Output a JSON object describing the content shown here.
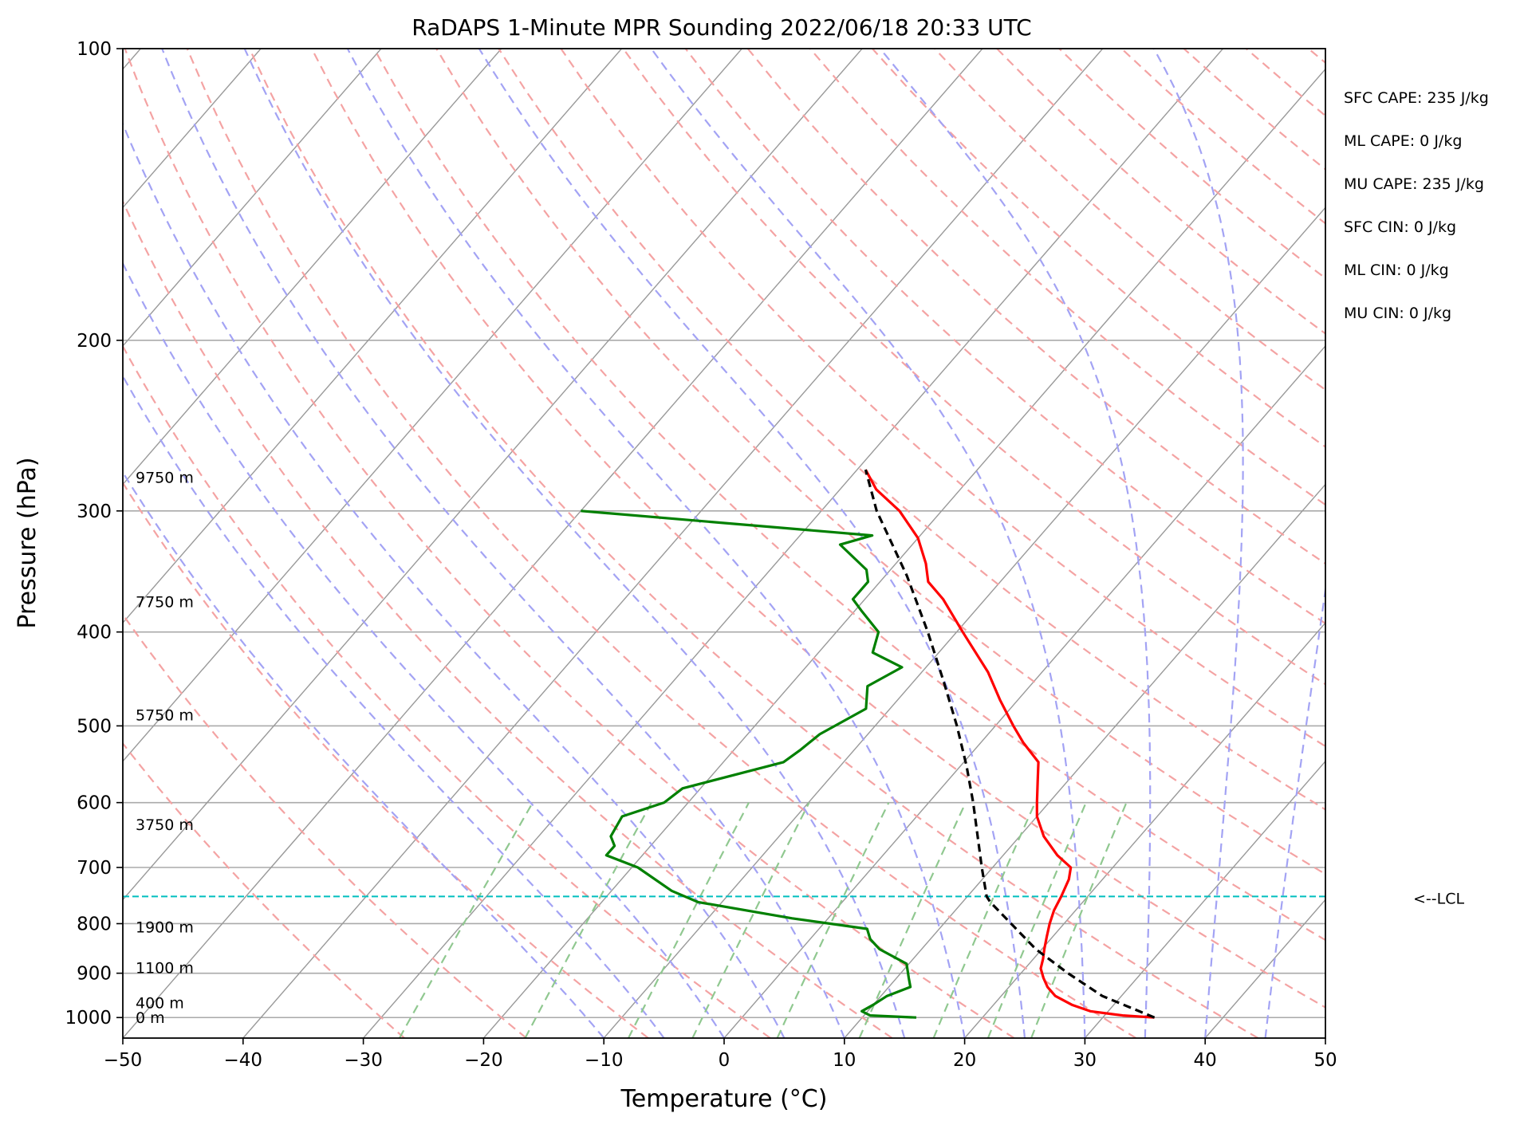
{
  "title": "RaDAPS 1-Minute MPR Sounding 2022/06/18 20:33 UTC",
  "chart_data": {
    "type": "line",
    "subtype": "skew-T log-P",
    "title": "RaDAPS 1-Minute MPR Sounding 2022/06/18 20:33 UTC",
    "xlabel": "Temperature (°C)",
    "ylabel": "Pressure (hPa)",
    "xlim": [
      -50,
      50
    ],
    "ylim": [
      1050,
      100
    ],
    "y_scale": "log",
    "x_ticks": [
      "−50",
      "−40",
      "−30",
      "−20",
      "−10",
      "0",
      "10",
      "20",
      "30",
      "40",
      "50"
    ],
    "y_ticks": [
      "100",
      "200",
      "300",
      "400",
      "500",
      "600",
      "700",
      "800",
      "900",
      "1000"
    ],
    "grid": true,
    "series": [
      {
        "role": "temperature",
        "color": "#ff0000",
        "points": [
          [
            1000,
            34.3
          ],
          [
            995,
            31.5
          ],
          [
            985,
            28.5
          ],
          [
            970,
            26.5
          ],
          [
            950,
            24.5
          ],
          [
            930,
            23.2
          ],
          [
            910,
            22.2
          ],
          [
            890,
            21.3
          ],
          [
            870,
            20.8
          ],
          [
            850,
            20.2
          ],
          [
            825,
            19.5
          ],
          [
            800,
            18.8
          ],
          [
            775,
            18.2
          ],
          [
            750,
            17.8
          ],
          [
            720,
            17.2
          ],
          [
            700,
            16.5
          ],
          [
            680,
            14.5
          ],
          [
            650,
            12.0
          ],
          [
            620,
            10.0
          ],
          [
            600,
            9.0
          ],
          [
            570,
            7.5
          ],
          [
            545,
            6.2
          ],
          [
            520,
            3.5
          ],
          [
            500,
            1.5
          ],
          [
            470,
            -1.5
          ],
          [
            440,
            -4.5
          ],
          [
            400,
            -9.5
          ],
          [
            370,
            -13.5
          ],
          [
            355,
            -16.0
          ],
          [
            340,
            -17.5
          ],
          [
            320,
            -20.0
          ],
          [
            300,
            -23.5
          ],
          [
            285,
            -27.0
          ],
          [
            272,
            -29.3
          ]
        ]
      },
      {
        "role": "dewpoint",
        "color": "#008000",
        "points": [
          [
            1000,
            14.5
          ],
          [
            995,
            10.5
          ],
          [
            985,
            9.5
          ],
          [
            970,
            10.0
          ],
          [
            950,
            10.5
          ],
          [
            930,
            11.8
          ],
          [
            910,
            11.0
          ],
          [
            880,
            9.8
          ],
          [
            850,
            6.5
          ],
          [
            830,
            5.0
          ],
          [
            810,
            4.0
          ],
          [
            790,
            -3.0
          ],
          [
            760,
            -12.0
          ],
          [
            740,
            -15.0
          ],
          [
            700,
            -19.5
          ],
          [
            680,
            -23.0
          ],
          [
            665,
            -23.0
          ],
          [
            650,
            -24.0
          ],
          [
            620,
            -24.5
          ],
          [
            600,
            -22.0
          ],
          [
            580,
            -21.5
          ],
          [
            545,
            -15.0
          ],
          [
            530,
            -14.5
          ],
          [
            510,
            -14.0
          ],
          [
            480,
            -12.0
          ],
          [
            455,
            -13.5
          ],
          [
            435,
            -12.0
          ],
          [
            420,
            -15.5
          ],
          [
            400,
            -16.5
          ],
          [
            380,
            -19.5
          ],
          [
            370,
            -21.0
          ],
          [
            355,
            -21.0
          ],
          [
            345,
            -22.0
          ],
          [
            325,
            -26.0
          ],
          [
            318,
            -24.0
          ],
          [
            300,
            -50.0
          ]
        ]
      },
      {
        "role": "parcel",
        "color": "#000000",
        "points": [
          [
            1000,
            34.3
          ],
          [
            950,
            28.4
          ],
          [
            900,
            23.9
          ],
          [
            850,
            19.5
          ],
          [
            800,
            15.6
          ],
          [
            760,
            12.3
          ],
          [
            750,
            11.6
          ],
          [
            700,
            9.1
          ],
          [
            650,
            6.5
          ],
          [
            600,
            3.7
          ],
          [
            550,
            0.5
          ],
          [
            500,
            -3.2
          ],
          [
            450,
            -7.5
          ],
          [
            400,
            -12.4
          ],
          [
            350,
            -18.2
          ],
          [
            300,
            -25.4
          ],
          [
            272,
            -29.3
          ]
        ]
      }
    ],
    "lcl_pressure": 750,
    "lcl_label": "<--LCL",
    "height_labels": [
      {
        "label": "9750 m",
        "pressure": 277
      },
      {
        "label": "7750 m",
        "pressure": 372
      },
      {
        "label": "5750 m",
        "pressure": 487
      },
      {
        "label": "3750 m",
        "pressure": 632
      },
      {
        "label": "1900 m",
        "pressure": 806
      },
      {
        "label": "1100 m",
        "pressure": 888
      },
      {
        "label": "400 m",
        "pressure": 965
      },
      {
        "label": "0 m",
        "pressure": 1000
      }
    ],
    "stats": [
      "SFC CAPE: 235 J/kg",
      "ML CAPE: 0 J/kg",
      "MU CAPE: 235 J/kg",
      "SFC CIN: 0 J/kg",
      "ML CIN: 0 J/kg",
      "MU CIN: 0 J/kg"
    ],
    "colors": {
      "temperature": "#ff0000",
      "dewpoint": "#008000",
      "parcel": "#000000",
      "lcl": "#00bfbf",
      "dry_adiabats": "#f4a3a3",
      "moist_adiabats": "#a3a3f4",
      "mixing_ratio": "#90c890",
      "isotherms": "#999999",
      "isobars": "#aaaaaa"
    }
  }
}
